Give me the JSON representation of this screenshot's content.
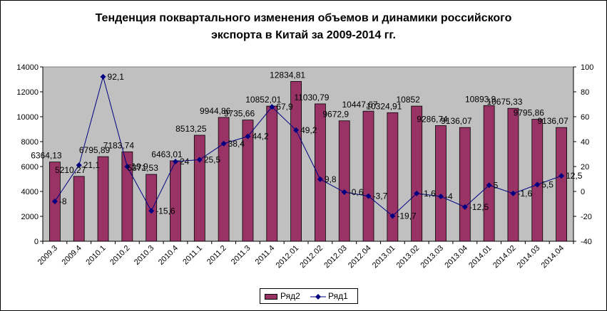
{
  "chart_data": {
    "type": "bar",
    "title_line1": "Тенденция поквартального изменения объемов и динамики российского",
    "title_line2": "экспорта в Китай за 2009-2014 гг.",
    "categories": [
      "2009.3",
      "2009.4",
      "2010.1",
      "2010.2",
      "2010.3",
      "2010.4",
      "2011.1",
      "2011.2",
      "2011.3",
      "2011.4",
      "2012.01",
      "2012.02",
      "2012.03",
      "2012.04",
      "2013.01",
      "2013.02",
      "2013.03",
      "2013.04",
      "2014.01",
      "2014.02",
      "2014.03",
      "2014.04"
    ],
    "series": [
      {
        "name": "Ряд2",
        "type": "bar",
        "axis": "left",
        "color": "#993366",
        "values": [
          6364.13,
          5210.27,
          6795.89,
          7183.74,
          5371.53,
          6463.01,
          8513.25,
          9944.86,
          9735.66,
          10852.01,
          12834.81,
          11030.79,
          9672.9,
          10447.67,
          10324.91,
          10852,
          9286.74,
          9136.07,
          10893.9,
          10675.33,
          9795.86,
          9136.07
        ],
        "labels": [
          "6364,13",
          "5210,27",
          "6795,89",
          "7183,74",
          "5371,53",
          "6463,01",
          "8513,25",
          "9944,86",
          "9735,66",
          "10852,01",
          "12834,81",
          "11030,79",
          "9672,9",
          "10447,67",
          "10324,91",
          "10852",
          "9286,74",
          "9136,07",
          "10893,9",
          "10675,33",
          "9795,86",
          "9136,07"
        ]
      },
      {
        "name": "Ряд1",
        "type": "line",
        "axis": "right",
        "color": "#000080",
        "values": [
          -8,
          21.1,
          92.1,
          19.9,
          -15.6,
          24,
          25.5,
          38.4,
          44.2,
          67.9,
          49.2,
          9.8,
          -0.6,
          -3.7,
          -19.7,
          -1.6,
          -4,
          -12.5,
          5,
          -1.6,
          5.5,
          12.5
        ],
        "labels": [
          "-8",
          "21,1",
          "92,1",
          "19,9",
          "-15,6",
          "24",
          "25,5",
          "38,4",
          "44,2",
          "67,9",
          "49,2",
          "9,8",
          "-0,6",
          "-3,7",
          "-19,7",
          "-1,6",
          "-4",
          "-12,5",
          "5",
          "-1,6",
          "5,5",
          "12,5"
        ]
      }
    ],
    "y_left": {
      "min": 0,
      "max": 14000,
      "step": 2000,
      "ticks": [
        "0",
        "2000",
        "4000",
        "6000",
        "8000",
        "10000",
        "12000",
        "14000"
      ]
    },
    "y_right": {
      "min": -40,
      "max": 100,
      "step": 20,
      "ticks": [
        "-40",
        "-20",
        "0",
        "20",
        "40",
        "60",
        "80",
        "100"
      ]
    },
    "plot_background": "#c0c0c0",
    "grid": false,
    "legend_position": "bottom"
  }
}
